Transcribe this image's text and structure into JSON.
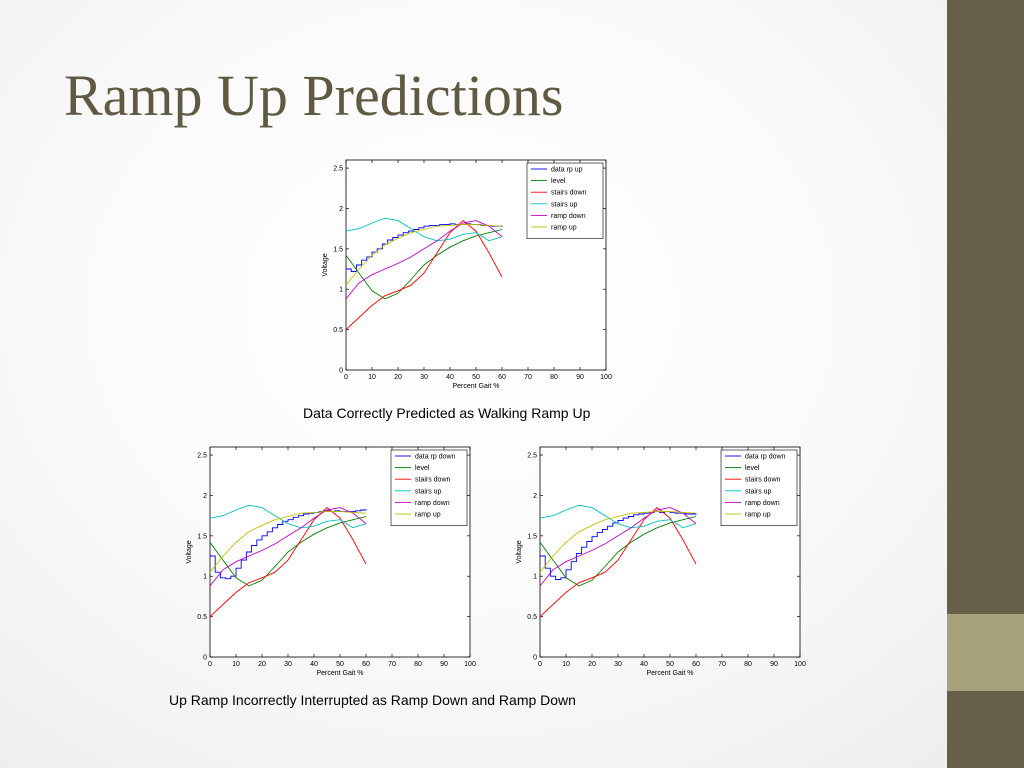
{
  "slide": {
    "title": "Ramp Up Predictions",
    "caption_top": "Data Correctly Predicted as Walking Ramp Up",
    "caption_bottom": "Up Ramp Incorrectly Interrupted as Ramp Down and Ramp Down"
  },
  "colors": {
    "sidebar": "#675f48",
    "sidebar_accent": "#a7a17e",
    "title": "#5f5a42"
  },
  "chart_data": [
    {
      "type": "line",
      "xlabel": "Percent Gait %",
      "ylabel": "Voltage",
      "xlim": [
        0,
        100
      ],
      "ylim": [
        0,
        2.6
      ],
      "xticks": [
        0,
        10,
        20,
        30,
        40,
        50,
        60,
        70,
        80,
        90,
        100
      ],
      "yticks": [
        0,
        0.5,
        1,
        1.5,
        2,
        2.5
      ],
      "grid": false,
      "legend_position": "top-right",
      "series": [
        {
          "name": "data rp up",
          "color": "#0000ff",
          "step": true,
          "x": [
            0,
            2,
            4,
            6,
            8,
            10,
            12,
            14,
            16,
            18,
            20,
            22,
            24,
            26,
            28,
            30,
            32,
            34,
            36,
            38,
            40,
            42,
            44,
            46,
            48,
            50,
            52,
            54,
            56,
            58,
            60
          ],
          "y": [
            1.25,
            1.22,
            1.3,
            1.36,
            1.4,
            1.46,
            1.5,
            1.56,
            1.61,
            1.64,
            1.67,
            1.7,
            1.72,
            1.74,
            1.76,
            1.78,
            1.79,
            1.79,
            1.8,
            1.8,
            1.81,
            1.8,
            1.8,
            1.81,
            1.8,
            1.8,
            1.79,
            1.79,
            1.78,
            1.78,
            1.77
          ]
        },
        {
          "name": "level",
          "color": "#008000",
          "x": [
            0,
            5,
            10,
            15,
            20,
            25,
            30,
            35,
            40,
            45,
            50,
            55,
            60
          ],
          "y": [
            1.42,
            1.2,
            0.98,
            0.88,
            0.95,
            1.12,
            1.3,
            1.42,
            1.52,
            1.6,
            1.66,
            1.7,
            1.74
          ]
        },
        {
          "name": "stairs down",
          "color": "#ff0000",
          "x": [
            0,
            5,
            10,
            15,
            20,
            25,
            30,
            35,
            40,
            45,
            50,
            55,
            60
          ],
          "y": [
            0.5,
            0.65,
            0.8,
            0.92,
            0.98,
            1.05,
            1.2,
            1.45,
            1.7,
            1.85,
            1.72,
            1.45,
            1.15
          ]
        },
        {
          "name": "stairs up",
          "color": "#00bfbf",
          "x": [
            0,
            5,
            10,
            15,
            20,
            25,
            30,
            35,
            40,
            45,
            50,
            55,
            60
          ],
          "y": [
            1.72,
            1.75,
            1.82,
            1.88,
            1.85,
            1.75,
            1.65,
            1.6,
            1.62,
            1.68,
            1.7,
            1.6,
            1.65
          ]
        },
        {
          "name": "ramp down",
          "color": "#bf00bf",
          "x": [
            0,
            5,
            10,
            15,
            20,
            25,
            30,
            35,
            40,
            45,
            50,
            55,
            60
          ],
          "y": [
            0.88,
            1.08,
            1.18,
            1.25,
            1.32,
            1.4,
            1.5,
            1.6,
            1.72,
            1.82,
            1.85,
            1.78,
            1.65
          ]
        },
        {
          "name": "ramp up",
          "color": "#bfbf00",
          "x": [
            0,
            5,
            10,
            15,
            20,
            25,
            30,
            35,
            40,
            45,
            50,
            55,
            60
          ],
          "y": [
            1.05,
            1.25,
            1.42,
            1.55,
            1.63,
            1.7,
            1.74,
            1.78,
            1.79,
            1.8,
            1.8,
            1.79,
            1.78
          ]
        }
      ]
    },
    {
      "type": "line",
      "xlabel": "Percent Gait %",
      "ylabel": "Voltage",
      "xlim": [
        0,
        100
      ],
      "ylim": [
        0,
        2.6
      ],
      "xticks": [
        0,
        10,
        20,
        30,
        40,
        50,
        60,
        70,
        80,
        90,
        100
      ],
      "yticks": [
        0,
        0.5,
        1,
        1.5,
        2,
        2.5
      ],
      "grid": false,
      "legend_position": "top-right",
      "series": [
        {
          "name": "data rp down",
          "color": "#0000ff",
          "step": true,
          "x": [
            0,
            2,
            4,
            6,
            8,
            10,
            12,
            14,
            16,
            18,
            20,
            22,
            24,
            26,
            28,
            30,
            32,
            34,
            36,
            38,
            40,
            42,
            44,
            46,
            48,
            50,
            52,
            54,
            56,
            58,
            60
          ],
          "y": [
            1.25,
            1.05,
            0.98,
            0.97,
            1.0,
            1.1,
            1.2,
            1.3,
            1.38,
            1.45,
            1.5,
            1.55,
            1.6,
            1.64,
            1.68,
            1.7,
            1.73,
            1.75,
            1.77,
            1.78,
            1.79,
            1.8,
            1.81,
            1.8,
            1.81,
            1.8,
            1.8,
            1.8,
            1.81,
            1.82,
            1.83
          ]
        },
        {
          "name": "level",
          "color": "#008000",
          "x": [
            0,
            5,
            10,
            15,
            20,
            25,
            30,
            35,
            40,
            45,
            50,
            55,
            60
          ],
          "y": [
            1.42,
            1.2,
            0.98,
            0.88,
            0.95,
            1.12,
            1.3,
            1.42,
            1.52,
            1.6,
            1.66,
            1.7,
            1.74
          ]
        },
        {
          "name": "stairs down",
          "color": "#ff0000",
          "x": [
            0,
            5,
            10,
            15,
            20,
            25,
            30,
            35,
            40,
            45,
            50,
            55,
            60
          ],
          "y": [
            0.5,
            0.65,
            0.8,
            0.92,
            0.98,
            1.05,
            1.2,
            1.45,
            1.7,
            1.85,
            1.72,
            1.45,
            1.15
          ]
        },
        {
          "name": "stairs up",
          "color": "#00bfbf",
          "x": [
            0,
            5,
            10,
            15,
            20,
            25,
            30,
            35,
            40,
            45,
            50,
            55,
            60
          ],
          "y": [
            1.72,
            1.75,
            1.82,
            1.88,
            1.85,
            1.75,
            1.65,
            1.6,
            1.62,
            1.68,
            1.7,
            1.6,
            1.65
          ]
        },
        {
          "name": "ramp down",
          "color": "#bf00bf",
          "x": [
            0,
            5,
            10,
            15,
            20,
            25,
            30,
            35,
            40,
            45,
            50,
            55,
            60
          ],
          "y": [
            0.88,
            1.08,
            1.18,
            1.25,
            1.32,
            1.4,
            1.5,
            1.6,
            1.72,
            1.82,
            1.85,
            1.78,
            1.65
          ]
        },
        {
          "name": "ramp up",
          "color": "#bfbf00",
          "x": [
            0,
            5,
            10,
            15,
            20,
            25,
            30,
            35,
            40,
            45,
            50,
            55,
            60
          ],
          "y": [
            1.05,
            1.25,
            1.42,
            1.55,
            1.63,
            1.7,
            1.74,
            1.78,
            1.79,
            1.8,
            1.8,
            1.79,
            1.78
          ]
        }
      ]
    },
    {
      "type": "line",
      "xlabel": "Percent Gait %",
      "ylabel": "Voltage",
      "xlim": [
        0,
        100
      ],
      "ylim": [
        0,
        2.6
      ],
      "xticks": [
        0,
        10,
        20,
        30,
        40,
        50,
        60,
        70,
        80,
        90,
        100
      ],
      "yticks": [
        0,
        0.5,
        1,
        1.5,
        2,
        2.5
      ],
      "grid": false,
      "legend_position": "top-right",
      "series": [
        {
          "name": "data rp down",
          "color": "#0000ff",
          "step": true,
          "x": [
            0,
            2,
            4,
            6,
            8,
            10,
            12,
            14,
            16,
            18,
            20,
            22,
            24,
            26,
            28,
            30,
            32,
            34,
            36,
            38,
            40,
            42,
            44,
            46,
            48,
            50,
            52,
            54,
            56,
            58,
            60
          ],
          "y": [
            1.25,
            1.1,
            1.0,
            0.96,
            0.98,
            1.08,
            1.18,
            1.28,
            1.36,
            1.43,
            1.49,
            1.54,
            1.58,
            1.62,
            1.66,
            1.69,
            1.72,
            1.74,
            1.76,
            1.77,
            1.78,
            1.79,
            1.8,
            1.79,
            1.8,
            1.79,
            1.78,
            1.78,
            1.77,
            1.77,
            1.76
          ]
        },
        {
          "name": "level",
          "color": "#008000",
          "x": [
            0,
            5,
            10,
            15,
            20,
            25,
            30,
            35,
            40,
            45,
            50,
            55,
            60
          ],
          "y": [
            1.42,
            1.2,
            0.98,
            0.88,
            0.95,
            1.12,
            1.3,
            1.42,
            1.52,
            1.6,
            1.66,
            1.7,
            1.74
          ]
        },
        {
          "name": "stairs down",
          "color": "#ff0000",
          "x": [
            0,
            5,
            10,
            15,
            20,
            25,
            30,
            35,
            40,
            45,
            50,
            55,
            60
          ],
          "y": [
            0.5,
            0.65,
            0.8,
            0.92,
            0.98,
            1.05,
            1.2,
            1.45,
            1.7,
            1.85,
            1.72,
            1.45,
            1.15
          ]
        },
        {
          "name": "stairs up",
          "color": "#00bfbf",
          "x": [
            0,
            5,
            10,
            15,
            20,
            25,
            30,
            35,
            40,
            45,
            50,
            55,
            60
          ],
          "y": [
            1.72,
            1.75,
            1.82,
            1.88,
            1.85,
            1.75,
            1.65,
            1.6,
            1.62,
            1.68,
            1.7,
            1.6,
            1.65
          ]
        },
        {
          "name": "ramp down",
          "color": "#bf00bf",
          "x": [
            0,
            5,
            10,
            15,
            20,
            25,
            30,
            35,
            40,
            45,
            50,
            55,
            60
          ],
          "y": [
            0.88,
            1.08,
            1.18,
            1.25,
            1.32,
            1.4,
            1.5,
            1.6,
            1.72,
            1.82,
            1.85,
            1.78,
            1.65
          ]
        },
        {
          "name": "ramp up",
          "color": "#bfbf00",
          "x": [
            0,
            5,
            10,
            15,
            20,
            25,
            30,
            35,
            40,
            45,
            50,
            55,
            60
          ],
          "y": [
            1.05,
            1.25,
            1.42,
            1.55,
            1.63,
            1.7,
            1.74,
            1.78,
            1.79,
            1.8,
            1.8,
            1.79,
            1.78
          ]
        }
      ]
    }
  ]
}
